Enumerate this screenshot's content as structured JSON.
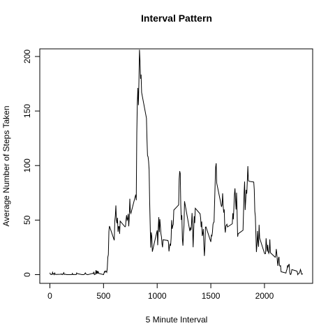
{
  "chart_data": {
    "type": "line",
    "title": "Interval Pattern",
    "x_label": "5 Minute Interval",
    "y_label": "Average Number of Steps Taken",
    "color": "#000000",
    "x": [
      0,
      5,
      10,
      15,
      20,
      25,
      30,
      35,
      40,
      45,
      50,
      55,
      100,
      105,
      110,
      115,
      120,
      125,
      130,
      135,
      140,
      145,
      150,
      155,
      200,
      205,
      210,
      215,
      220,
      225,
      230,
      235,
      240,
      245,
      250,
      255,
      300,
      305,
      310,
      315,
      320,
      325,
      330,
      335,
      340,
      345,
      350,
      355,
      400,
      405,
      410,
      415,
      420,
      425,
      430,
      435,
      440,
      445,
      450,
      455,
      500,
      505,
      510,
      515,
      520,
      525,
      530,
      535,
      540,
      545,
      550,
      555,
      600,
      605,
      610,
      615,
      620,
      625,
      630,
      635,
      640,
      645,
      650,
      655,
      700,
      705,
      710,
      715,
      720,
      725,
      730,
      735,
      740,
      745,
      750,
      755,
      800,
      805,
      810,
      815,
      820,
      825,
      830,
      835,
      840,
      845,
      850,
      855,
      900,
      905,
      910,
      915,
      920,
      925,
      930,
      935,
      940,
      945,
      950,
      955,
      1000,
      1005,
      1010,
      1015,
      1020,
      1025,
      1030,
      1035,
      1040,
      1045,
      1050,
      1055,
      1100,
      1105,
      1110,
      1115,
      1120,
      1125,
      1130,
      1135,
      1140,
      1145,
      1150,
      1155,
      1200,
      1205,
      1210,
      1215,
      1220,
      1225,
      1230,
      1235,
      1240,
      1245,
      1250,
      1255,
      1300,
      1305,
      1310,
      1315,
      1320,
      1325,
      1330,
      1335,
      1340,
      1345,
      1350,
      1355,
      1400,
      1405,
      1410,
      1415,
      1420,
      1425,
      1430,
      1435,
      1440,
      1445,
      1450,
      1455,
      1500,
      1505,
      1510,
      1515,
      1520,
      1525,
      1530,
      1535,
      1540,
      1545,
      1550,
      1555,
      1600,
      1605,
      1610,
      1615,
      1620,
      1625,
      1630,
      1635,
      1640,
      1645,
      1650,
      1655,
      1700,
      1705,
      1710,
      1715,
      1720,
      1725,
      1730,
      1735,
      1740,
      1745,
      1750,
      1755,
      1800,
      1805,
      1810,
      1815,
      1820,
      1825,
      1830,
      1835,
      1840,
      1845,
      1850,
      1855,
      1900,
      1905,
      1910,
      1915,
      1920,
      1925,
      1930,
      1935,
      1940,
      1945,
      1950,
      1955,
      2000,
      2005,
      2010,
      2015,
      2020,
      2025,
      2030,
      2035,
      2040,
      2045,
      2050,
      2055,
      2100,
      2105,
      2110,
      2115,
      2120,
      2125,
      2130,
      2135,
      2140,
      2145,
      2150,
      2155,
      2200,
      2205,
      2210,
      2215,
      2220,
      2225,
      2230,
      2235,
      2240,
      2245,
      2250,
      2255,
      2300,
      2305,
      2310,
      2315,
      2320,
      2325,
      2330,
      2335,
      2340,
      2345,
      2350,
      2355
    ],
    "values": [
      1.72,
      0.34,
      0.13,
      0.15,
      0.08,
      2.09,
      0.53,
      0.87,
      0,
      1.47,
      0.3,
      0.13,
      0.32,
      0.68,
      0.15,
      0.34,
      0,
      1.11,
      1.83,
      0.17,
      0.17,
      0.38,
      0.26,
      0,
      0,
      0,
      1.13,
      0,
      0,
      0.13,
      0,
      0.23,
      0,
      0,
      1.55,
      0.94,
      0,
      0,
      0,
      0,
      0.21,
      0.62,
      1.62,
      0.58,
      0.49,
      0.08,
      0,
      0,
      1.19,
      0.94,
      2.57,
      0,
      0.34,
      0.36,
      4.11,
      0.66,
      3.49,
      0.83,
      3.11,
      1.11,
      0,
      1.57,
      3,
      2.25,
      3.32,
      2.96,
      2.09,
      6.06,
      16.02,
      18.34,
      39.45,
      44.49,
      31.49,
      49.26,
      53.77,
      63.45,
      49.96,
      47.08,
      52.15,
      39.34,
      44.02,
      44.17,
      37.36,
      49.04,
      43.81,
      44.38,
      50.51,
      54.51,
      49.92,
      50.98,
      55.68,
      44.32,
      52.26,
      69.55,
      57.85,
      56.15,
      73.38,
      68.21,
      129.43,
      157.53,
      171.15,
      155.4,
      177.3,
      206.17,
      195.92,
      179.57,
      183.4,
      167.02,
      143.45,
      124.04,
      109.11,
      108.11,
      103.72,
      95.96,
      66.21,
      45.23,
      24.79,
      38.75,
      34.98,
      21.06,
      40.57,
      26.98,
      42.42,
      52.66,
      38.92,
      50.79,
      44.28,
      37.42,
      34.7,
      28.34,
      25.09,
      31.94,
      31.36,
      29.68,
      21.32,
      25.55,
      28.38,
      26.47,
      33.43,
      49.98,
      42.04,
      44.6,
      46.04,
      59.19,
      63.87,
      87.7,
      94.85,
      92.77,
      63.4,
      50.17,
      54.47,
      32.42,
      26.53,
      37.74,
      45.06,
      67.28,
      42.34,
      39.89,
      43.26,
      40.98,
      46.25,
      56.43,
      42.75,
      25.13,
      39.96,
      53.55,
      47.32,
      60.81,
      55.75,
      51.96,
      43.58,
      48.7,
      35.47,
      37.55,
      41.85,
      27.51,
      17.11,
      26.08,
      43.62,
      43.77,
      30.02,
      36.08,
      35.49,
      38.85,
      45.96,
      47.75,
      48.13,
      65.32,
      82.91,
      98.66,
      102.11,
      83.96,
      62.13,
      64.13,
      74.55,
      63.17,
      56.91,
      59.77,
      43.87,
      38.57,
      44.66,
      45.45,
      46.21,
      43.68,
      46.62,
      56.3,
      50.72,
      61.23,
      73.38,
      79.11,
      68.94,
      59.66,
      75.09,
      56.51,
      34.77,
      37.45,
      40.68,
      58.02,
      74.7,
      85.32,
      59.26,
      67.77,
      77.7,
      74.25,
      85.34,
      99.45,
      86.58,
      85.6,
      84.87,
      77.83,
      58.04,
      53.36,
      36.33,
      20.72,
      27.4,
      40.02,
      30.21,
      25.55,
      45.66,
      33.53,
      19.62,
      19.02,
      19.34,
      33.34,
      26.81,
      21.17,
      27.3,
      21.34,
      19.55,
      21.32,
      32.3,
      20.15,
      15.94,
      17.23,
      23.45,
      19.25,
      12.45,
      8.02,
      14.66,
      16.3,
      8.68,
      7.79,
      8.13,
      2.62,
      1.45,
      3.68,
      4.81,
      8.51,
      7.08,
      8.7,
      9.75,
      2.21,
      0.32,
      0.11,
      1.6,
      4.6,
      3.3,
      2.85,
      0,
      0.83,
      0.96,
      1.58,
      2.6,
      4.7,
      3.3,
      0.64,
      0.23,
      1.08
    ],
    "xlim": [
      -94.2,
      2449.2
    ],
    "ylim": [
      -8,
      207
    ],
    "xticks": [
      0,
      500,
      1000,
      1500,
      2000
    ],
    "yticks": [
      0,
      50,
      100,
      150,
      200
    ]
  }
}
